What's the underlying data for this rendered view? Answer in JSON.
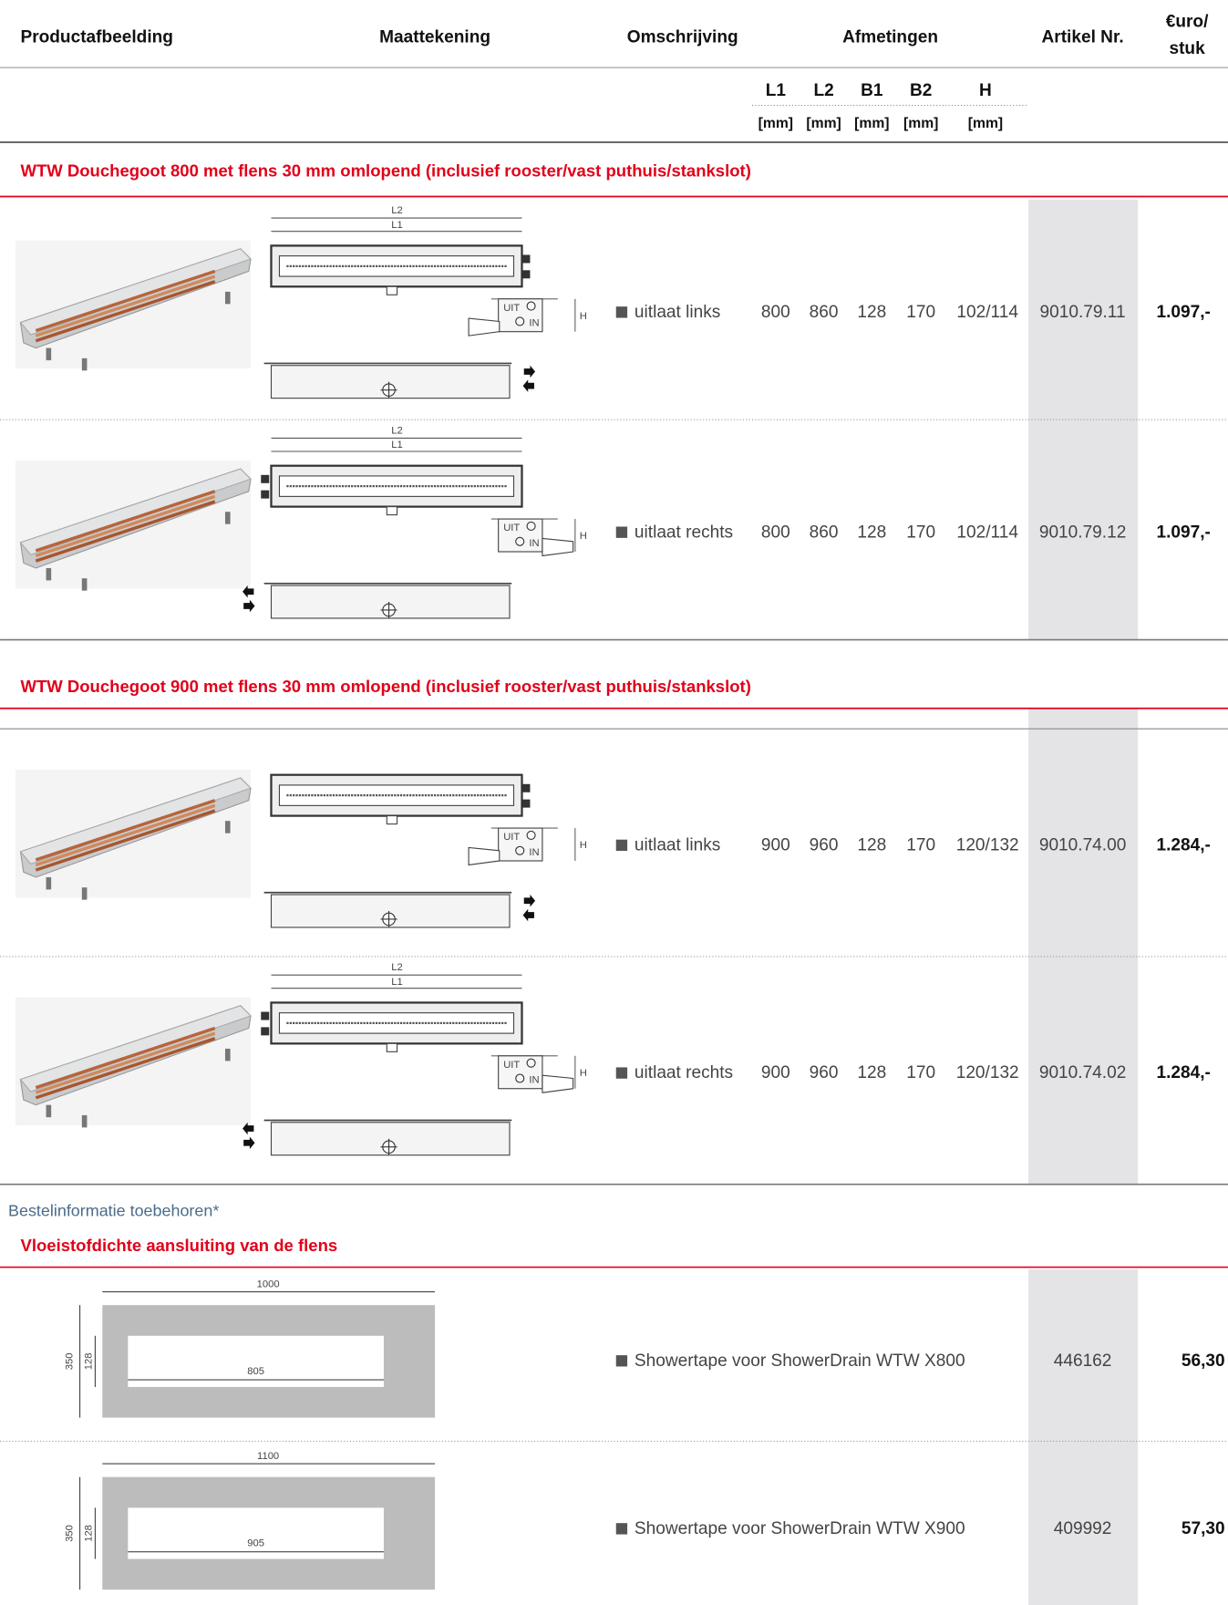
{
  "header": {
    "columns": [
      "Productafbeelding",
      "Maattekening",
      "Omschrijving",
      "Afmetingen",
      "Artikel Nr."
    ],
    "price_header": [
      "€uro/",
      "stuk"
    ]
  },
  "units": {
    "dimensions": [
      "L1",
      "L2",
      "B1",
      "B2",
      "H"
    ],
    "unit": "[mm]"
  },
  "sections": [
    {
      "title": "WTW Douchegoot 800 met flens 30 mm omlopend (inclusief rooster/vast puthuis/stankslot)",
      "rows": [
        {
          "description": "uitlaat links",
          "dimensions": [
            800,
            860,
            128,
            170,
            "102/114"
          ],
          "article": "9010.79.11",
          "price": "1.097,-",
          "drawing": {
            "top_length": "L2",
            "inner_length": "L1",
            "out": "UIT",
            "in": "IN",
            "height": "H"
          }
        },
        {
          "description": "uitlaat rechts",
          "dimensions": [
            800,
            860,
            128,
            170,
            "102/114"
          ],
          "article": "9010.79.12",
          "price": "1.097,-",
          "drawing": {
            "top_length": "L2",
            "inner_length": "L1",
            "out": "UIT",
            "in": "IN",
            "height": "H"
          }
        }
      ]
    },
    {
      "title": "WTW Douchegoot 900 met flens 30 mm omlopend (inclusief rooster/vast puthuis/stankslot)",
      "rows": [
        {
          "description": "uitlaat links",
          "dimensions": [
            900,
            960,
            128,
            170,
            "120/132"
          ],
          "article": "9010.74.00",
          "price": "1.284,-",
          "drawing": {
            "out": "UIT",
            "in": "IN",
            "height": "H"
          }
        },
        {
          "description": "uitlaat rechts",
          "dimensions": [
            900,
            960,
            128,
            170,
            "120/132"
          ],
          "article": "9010.74.02",
          "price": "1.284,-",
          "drawing": {
            "top_length": "L2",
            "inner_length": "L1",
            "out": "UIT",
            "in": "IN",
            "height": "H"
          }
        }
      ]
    }
  ],
  "accessories": {
    "intro": "Bestelinformatie toebehoren*",
    "title": "Vloeistofdichte aansluiting van de flens",
    "rows": [
      {
        "description": "Showertape voor ShowerDrain WTW X800",
        "article": "446162",
        "price": "56,30",
        "drawing": {
          "length": "1000",
          "inner_length": "805",
          "width": "350",
          "inner_width": "128"
        }
      },
      {
        "description": "Showertape voor ShowerDrain WTW X900",
        "article": "409992",
        "price": "57,30",
        "drawing": {
          "length": "1100",
          "inner_length": "905",
          "width": "350",
          "inner_width": "128"
        }
      }
    ]
  }
}
